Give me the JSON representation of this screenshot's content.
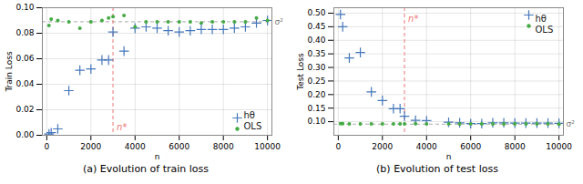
{
  "chart_data": [
    {
      "type": "scatter",
      "caption": "(a) Evolution of train loss",
      "x_label": "n",
      "y_label": "Train Loss",
      "x": [
        100,
        200,
        500,
        1000,
        1500,
        2000,
        2500,
        2800,
        3000,
        3500,
        4000,
        4500,
        5000,
        5500,
        6000,
        6500,
        7000,
        7500,
        8000,
        8500,
        9000,
        9500,
        10000
      ],
      "series": [
        {
          "name": "hθ",
          "color": "#4477BB",
          "marker": "+",
          "values": [
            0.001,
            0.002,
            0.005,
            0.035,
            0.051,
            0.052,
            0.059,
            0.059,
            0.081,
            0.066,
            0.084,
            0.085,
            0.084,
            0.082,
            0.081,
            0.082,
            0.083,
            0.083,
            0.083,
            0.084,
            0.085,
            0.088,
            0.09
          ]
        },
        {
          "name": "OLS",
          "color": "#44AA44",
          "marker": "o",
          "values": [
            0.086,
            0.091,
            0.09,
            0.089,
            0.084,
            0.089,
            0.09,
            0.092,
            0.093,
            0.094,
            0.085,
            0.089,
            0.089,
            0.089,
            0.089,
            0.089,
            0.088,
            0.089,
            0.089,
            0.089,
            0.089,
            0.092,
            0.09
          ]
        }
      ],
      "annotations": [
        {
          "type": "hline",
          "y": 0.089,
          "label": "σ²",
          "color": "#AAAAAA",
          "line_style": "dashed"
        },
        {
          "type": "vline",
          "x": 3000,
          "label": "n*",
          "color": "#EE7777",
          "line_style": "dashed"
        }
      ],
      "xlim": [
        -200,
        10200
      ],
      "xticks": [
        0,
        2000,
        4000,
        6000,
        8000,
        10000
      ],
      "ylim": [
        0.0,
        0.1
      ],
      "yticks": [
        {
          "value": 0.0,
          "label": "0.00"
        },
        0.02,
        0.04,
        0.06,
        0.08,
        {
          "value": 0.1,
          "label": "0.10"
        }
      ],
      "grid": true,
      "legend": "lower right"
    },
    {
      "type": "scatter",
      "caption": "(b) Evolution of test loss",
      "x_label": "n",
      "y_label": "Test Loss",
      "x": [
        100,
        200,
        500,
        1000,
        1500,
        2000,
        2500,
        2800,
        3000,
        3500,
        4000,
        5000,
        5500,
        6000,
        6500,
        7000,
        7500,
        8000,
        8500,
        9000,
        9500,
        10000
      ],
      "series": [
        {
          "name": "hθ",
          "color": "#4477BB",
          "marker": "+",
          "values": [
            0.495,
            0.45,
            0.335,
            0.355,
            0.21,
            0.178,
            0.148,
            0.148,
            0.12,
            0.105,
            0.104,
            0.098,
            0.096,
            0.093,
            0.093,
            0.096,
            0.096,
            0.095,
            0.095,
            0.095,
            0.095,
            0.094
          ]
        },
        {
          "name": "OLS",
          "color": "#44AA44",
          "marker": "o",
          "values": [
            0.093,
            0.093,
            0.092,
            0.092,
            0.092,
            0.092,
            0.092,
            0.092,
            0.092,
            0.093,
            0.092,
            0.092,
            0.092,
            0.092,
            0.092,
            0.092,
            0.092,
            0.092,
            0.092,
            0.092,
            0.092,
            0.091
          ]
        }
      ],
      "annotations": [
        {
          "type": "hline",
          "y": 0.091,
          "label": "σ²",
          "color": "#AAAAAA",
          "line_style": "dashed"
        },
        {
          "type": "vline",
          "x": 3000,
          "label": "n*",
          "color": "#EE7777",
          "line_style": "dashed"
        }
      ],
      "xlim": [
        -200,
        10200
      ],
      "xticks": [
        0,
        2000,
        4000,
        6000,
        8000,
        10000
      ],
      "ylim": [
        0.05,
        0.52
      ],
      "yticks": [
        {
          "value": 0.1,
          "label": "0.10"
        },
        0.15,
        {
          "value": 0.2,
          "label": "0.20"
        },
        0.25,
        {
          "value": 0.3,
          "label": "0.30"
        },
        0.35,
        {
          "value": 0.4,
          "label": "0.40"
        },
        0.45,
        {
          "value": 0.5,
          "label": "0.50"
        }
      ],
      "grid": true,
      "legend": "upper right"
    }
  ]
}
